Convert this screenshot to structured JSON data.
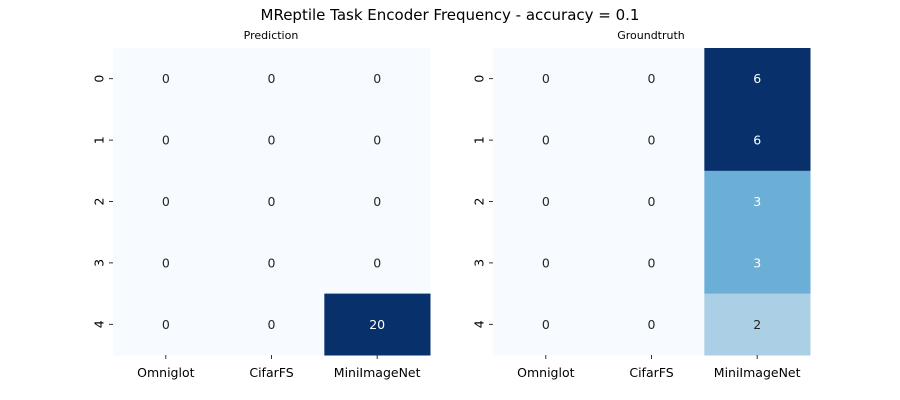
{
  "figure": {
    "title": "MReptile Task Encoder Frequency - accuracy = 0.1"
  },
  "colors": {
    "scale_low": "#f7fbff",
    "scale_high": "#08306b",
    "text_dark": "#262626",
    "text_light": "#ffffff"
  },
  "chart_data": [
    {
      "type": "heatmap",
      "title": "Prediction",
      "colormap": "Blues",
      "colorbar": false,
      "x_categories": [
        "Omniglot",
        "CifarFS",
        "MiniImageNet"
      ],
      "y_categories": [
        "0",
        "1",
        "2",
        "3",
        "4"
      ],
      "values": [
        [
          0,
          0,
          0
        ],
        [
          0,
          0,
          0
        ],
        [
          0,
          0,
          0
        ],
        [
          0,
          0,
          0
        ],
        [
          0,
          0,
          20
        ]
      ]
    },
    {
      "type": "heatmap",
      "title": "Groundtruth",
      "colormap": "Blues",
      "colorbar": false,
      "x_categories": [
        "Omniglot",
        "CifarFS",
        "MiniImageNet"
      ],
      "y_categories": [
        "0",
        "1",
        "2",
        "3",
        "4"
      ],
      "values": [
        [
          0,
          0,
          6
        ],
        [
          0,
          0,
          6
        ],
        [
          0,
          0,
          3
        ],
        [
          0,
          0,
          3
        ],
        [
          0,
          0,
          2
        ]
      ]
    }
  ]
}
